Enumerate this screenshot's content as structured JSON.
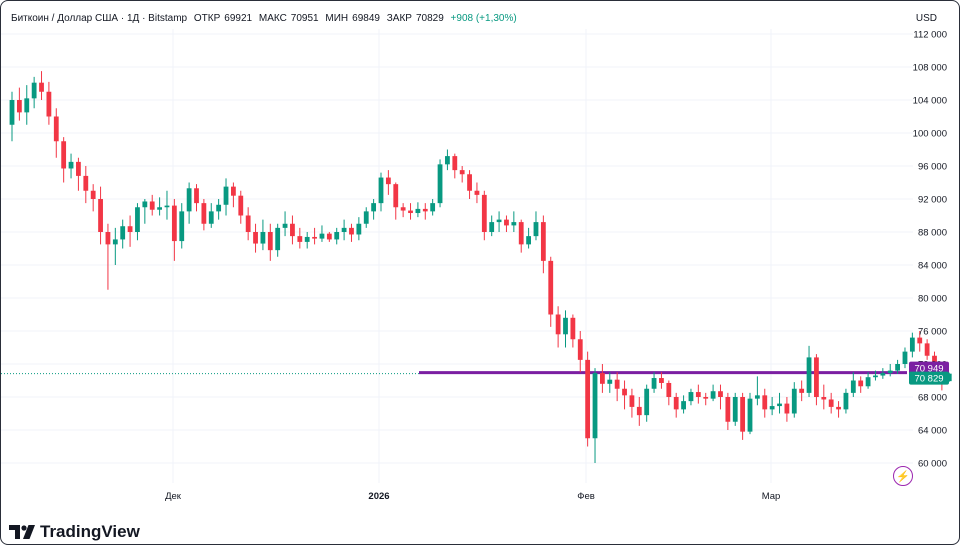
{
  "header": {
    "symbol": "Биткоин / Доллар США · 1Д · Bitstamp",
    "open_label": "ОТКР",
    "open_value": "69921",
    "high_label": "МАКС",
    "high_value": "70951",
    "low_label": "МИН",
    "low_value": "69849",
    "close_label": "ЗАКР",
    "close_value": "70829",
    "change": "+908 (+1,30%)"
  },
  "currency": "USD",
  "logo_text": "TradingView",
  "colors": {
    "up": "#089981",
    "down": "#f23645",
    "line": "#7b1fa2",
    "grid": "#f0f3fa"
  },
  "chart_data": {
    "type": "candlestick",
    "y_ticks": [
      "60 000",
      "64 000",
      "68 000",
      "72 000",
      "76 000",
      "80 000",
      "84 000",
      "88 000",
      "92 000",
      "96 000",
      "100 000",
      "104 000",
      "108 000",
      "112 000"
    ],
    "x_ticks": [
      "Дек",
      "2026",
      "Фев",
      "Мар"
    ],
    "ylim": [
      57000,
      112000
    ],
    "price_labels": {
      "line": "70949",
      "last": "70829"
    },
    "horizontal_line": 70949,
    "candles": [
      [
        101000,
        104000,
        99000,
        105000
      ],
      [
        104000,
        102500,
        101500,
        105500
      ],
      [
        102500,
        104200,
        101000,
        105800
      ],
      [
        104200,
        106100,
        103000,
        106800
      ],
      [
        106100,
        105000,
        104000,
        107500
      ],
      [
        105000,
        102000,
        101000,
        106200
      ],
      [
        102000,
        99000,
        97000,
        103000
      ],
      [
        99000,
        95700,
        94000,
        99500
      ],
      [
        95700,
        96500,
        94500,
        97500
      ],
      [
        96500,
        94800,
        93000,
        97000
      ],
      [
        94800,
        93000,
        91500,
        96000
      ],
      [
        93000,
        92000,
        90500,
        93800
      ],
      [
        92000,
        88000,
        86500,
        93500
      ],
      [
        88000,
        86500,
        81000,
        89000
      ],
      [
        86500,
        87100,
        84000,
        88500
      ],
      [
        87100,
        88700,
        86000,
        89500
      ],
      [
        88700,
        88000,
        86200,
        90000
      ],
      [
        88000,
        91000,
        87000,
        91500
      ],
      [
        91000,
        91700,
        89000,
        92000
      ],
      [
        91700,
        90700,
        90000,
        92500
      ],
      [
        90700,
        91000,
        90000,
        92200
      ],
      [
        91000,
        91200,
        89500,
        93000
      ],
      [
        91200,
        86900,
        84500,
        92000
      ],
      [
        86900,
        90500,
        86000,
        91500
      ],
      [
        90500,
        93300,
        89000,
        94000
      ],
      [
        93300,
        91500,
        90500,
        93800
      ],
      [
        91500,
        89000,
        88200,
        92000
      ],
      [
        89000,
        90500,
        88500,
        91500
      ],
      [
        90500,
        91300,
        89500,
        92000
      ],
      [
        91300,
        93500,
        90000,
        94500
      ],
      [
        93500,
        92400,
        91000,
        94000
      ],
      [
        92400,
        90000,
        89000,
        93000
      ],
      [
        90000,
        88000,
        87000,
        91000
      ],
      [
        88000,
        86600,
        85500,
        89000
      ],
      [
        86600,
        88000,
        85800,
        89500
      ],
      [
        88000,
        85800,
        84500,
        89000
      ],
      [
        85800,
        88500,
        85000,
        89000
      ],
      [
        88500,
        89000,
        87500,
        90500
      ],
      [
        89000,
        87500,
        86500,
        90000
      ],
      [
        87500,
        86800,
        86000,
        88500
      ],
      [
        86800,
        87400,
        86000,
        88000
      ],
      [
        87400,
        87200,
        86500,
        88500
      ],
      [
        87200,
        87800,
        86800,
        88800
      ],
      [
        87800,
        87100,
        86800,
        88000
      ],
      [
        87100,
        88000,
        86500,
        88500
      ],
      [
        88000,
        88500,
        87000,
        89500
      ],
      [
        88500,
        87700,
        86800,
        89000
      ],
      [
        87700,
        89000,
        87000,
        89800
      ],
      [
        89000,
        90500,
        88500,
        91000
      ],
      [
        90500,
        91500,
        89500,
        92000
      ],
      [
        91500,
        94600,
        90500,
        95200
      ],
      [
        94600,
        93800,
        92500,
        95500
      ],
      [
        93800,
        91000,
        89500,
        94000
      ],
      [
        91000,
        90600,
        89800,
        91500
      ],
      [
        90600,
        90300,
        89500,
        91500
      ],
      [
        90300,
        90800,
        89800,
        91600
      ],
      [
        90800,
        90500,
        89500,
        91500
      ],
      [
        90500,
        91500,
        90000,
        92000
      ],
      [
        91500,
        96200,
        91000,
        96800
      ],
      [
        96200,
        97200,
        95500,
        98000
      ],
      [
        97200,
        95500,
        94500,
        97500
      ],
      [
        95500,
        95000,
        94000,
        96000
      ],
      [
        95000,
        93000,
        92000,
        95500
      ],
      [
        93000,
        92500,
        91500,
        94000
      ],
      [
        92500,
        88000,
        87000,
        93000
      ],
      [
        88000,
        89200,
        87500,
        90000
      ],
      [
        89200,
        89500,
        88000,
        90500
      ],
      [
        89500,
        88800,
        88000,
        90000
      ],
      [
        88800,
        89200,
        88000,
        90500
      ],
      [
        89200,
        86500,
        85500,
        89500
      ],
      [
        86500,
        87500,
        86000,
        88500
      ],
      [
        87500,
        89200,
        87000,
        90500
      ],
      [
        89200,
        84500,
        83000,
        90000
      ],
      [
        84500,
        78000,
        76500,
        85000
      ],
      [
        78000,
        75600,
        74000,
        79000
      ],
      [
        75600,
        77600,
        74000,
        78500
      ],
      [
        77600,
        75000,
        74000,
        78000
      ],
      [
        75000,
        72500,
        71000,
        76000
      ],
      [
        72500,
        63000,
        62000,
        73500
      ],
      [
        63000,
        70900,
        60000,
        71500
      ],
      [
        70900,
        69600,
        68500,
        72000
      ],
      [
        69600,
        70100,
        68500,
        71000
      ],
      [
        70100,
        69000,
        67500,
        71000
      ],
      [
        69000,
        68200,
        66500,
        70000
      ],
      [
        68200,
        66800,
        65500,
        69000
      ],
      [
        66800,
        65800,
        64500,
        68000
      ],
      [
        65800,
        69000,
        65000,
        69500
      ],
      [
        69000,
        70300,
        68500,
        71000
      ],
      [
        70300,
        69700,
        69000,
        71000
      ],
      [
        69700,
        68000,
        67000,
        70000
      ],
      [
        68000,
        66500,
        65500,
        68500
      ],
      [
        66500,
        67500,
        66000,
        68200
      ],
      [
        67500,
        68600,
        67000,
        69000
      ],
      [
        68600,
        68000,
        67200,
        69500
      ],
      [
        68000,
        67800,
        67000,
        68500
      ],
      [
        67800,
        68700,
        67500,
        69500
      ],
      [
        68700,
        68000,
        66500,
        69500
      ],
      [
        68000,
        65000,
        64000,
        68500
      ],
      [
        65000,
        68000,
        64500,
        68500
      ],
      [
        68000,
        63800,
        62800,
        68500
      ],
      [
        63800,
        67800,
        63500,
        68500
      ],
      [
        67800,
        68200,
        67000,
        70500
      ],
      [
        68200,
        66500,
        65500,
        69000
      ],
      [
        66500,
        66900,
        65800,
        68000
      ],
      [
        66900,
        67200,
        66000,
        68500
      ],
      [
        67200,
        66000,
        65000,
        68000
      ],
      [
        66000,
        69000,
        65500,
        69800
      ],
      [
        69000,
        68500,
        67500,
        70000
      ],
      [
        68500,
        72800,
        68000,
        74200
      ],
      [
        72800,
        68000,
        67000,
        73200
      ],
      [
        68000,
        67700,
        66500,
        69500
      ],
      [
        67700,
        66800,
        66000,
        68500
      ],
      [
        66800,
        66500,
        65500,
        67500
      ],
      [
        66500,
        68500,
        66000,
        69000
      ],
      [
        68500,
        70000,
        68000,
        71000
      ],
      [
        70000,
        69300,
        68500,
        70500
      ],
      [
        69300,
        70400,
        69000,
        71000
      ],
      [
        70400,
        70600,
        70000,
        71200
      ],
      [
        70600,
        70900,
        70200,
        71500
      ],
      [
        70900,
        71200,
        70500,
        72000
      ],
      [
        71200,
        72000,
        70800,
        72500
      ],
      [
        72000,
        73500,
        71500,
        74000
      ],
      [
        73500,
        75200,
        72800,
        75800
      ],
      [
        75200,
        74500,
        73500,
        76000
      ],
      [
        74500,
        73000,
        72500,
        75000
      ],
      [
        73000,
        70900,
        70000,
        73500
      ],
      [
        70900,
        70000,
        68800,
        71500
      ],
      [
        69921,
        70829,
        69849,
        70951
      ]
    ]
  }
}
